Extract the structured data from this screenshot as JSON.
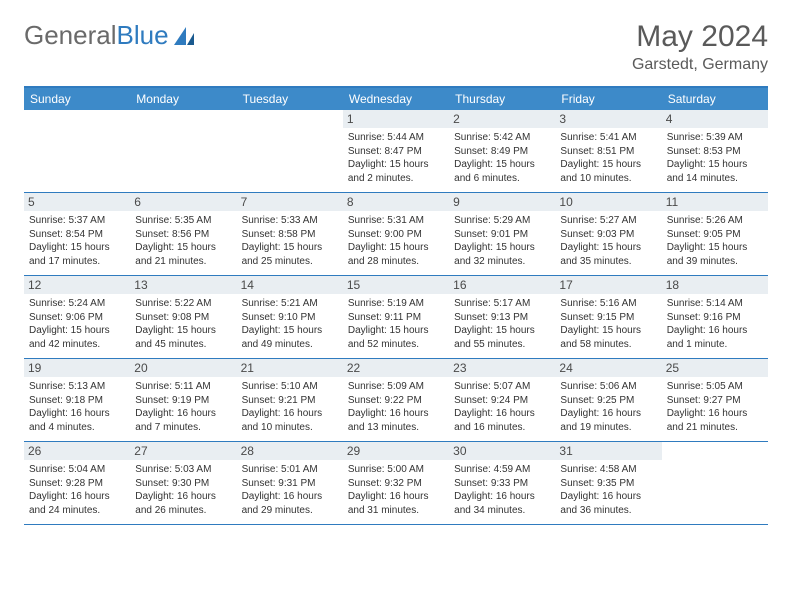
{
  "logo": {
    "text1": "General",
    "text2": "Blue"
  },
  "title": "May 2024",
  "location": "Garstedt, Germany",
  "colors": {
    "header_bg": "#3d8ac9",
    "border": "#2f7bbf",
    "daynum_bg": "#e9eef2",
    "text_gray": "#5a5a5a"
  },
  "day_headers": [
    "Sunday",
    "Monday",
    "Tuesday",
    "Wednesday",
    "Thursday",
    "Friday",
    "Saturday"
  ],
  "weeks": [
    [
      {
        "empty": true
      },
      {
        "empty": true
      },
      {
        "empty": true
      },
      {
        "num": "1",
        "sunrise": "Sunrise: 5:44 AM",
        "sunset": "Sunset: 8:47 PM",
        "daylight": "Daylight: 15 hours and 2 minutes."
      },
      {
        "num": "2",
        "sunrise": "Sunrise: 5:42 AM",
        "sunset": "Sunset: 8:49 PM",
        "daylight": "Daylight: 15 hours and 6 minutes."
      },
      {
        "num": "3",
        "sunrise": "Sunrise: 5:41 AM",
        "sunset": "Sunset: 8:51 PM",
        "daylight": "Daylight: 15 hours and 10 minutes."
      },
      {
        "num": "4",
        "sunrise": "Sunrise: 5:39 AM",
        "sunset": "Sunset: 8:53 PM",
        "daylight": "Daylight: 15 hours and 14 minutes."
      }
    ],
    [
      {
        "num": "5",
        "sunrise": "Sunrise: 5:37 AM",
        "sunset": "Sunset: 8:54 PM",
        "daylight": "Daylight: 15 hours and 17 minutes."
      },
      {
        "num": "6",
        "sunrise": "Sunrise: 5:35 AM",
        "sunset": "Sunset: 8:56 PM",
        "daylight": "Daylight: 15 hours and 21 minutes."
      },
      {
        "num": "7",
        "sunrise": "Sunrise: 5:33 AM",
        "sunset": "Sunset: 8:58 PM",
        "daylight": "Daylight: 15 hours and 25 minutes."
      },
      {
        "num": "8",
        "sunrise": "Sunrise: 5:31 AM",
        "sunset": "Sunset: 9:00 PM",
        "daylight": "Daylight: 15 hours and 28 minutes."
      },
      {
        "num": "9",
        "sunrise": "Sunrise: 5:29 AM",
        "sunset": "Sunset: 9:01 PM",
        "daylight": "Daylight: 15 hours and 32 minutes."
      },
      {
        "num": "10",
        "sunrise": "Sunrise: 5:27 AM",
        "sunset": "Sunset: 9:03 PM",
        "daylight": "Daylight: 15 hours and 35 minutes."
      },
      {
        "num": "11",
        "sunrise": "Sunrise: 5:26 AM",
        "sunset": "Sunset: 9:05 PM",
        "daylight": "Daylight: 15 hours and 39 minutes."
      }
    ],
    [
      {
        "num": "12",
        "sunrise": "Sunrise: 5:24 AM",
        "sunset": "Sunset: 9:06 PM",
        "daylight": "Daylight: 15 hours and 42 minutes."
      },
      {
        "num": "13",
        "sunrise": "Sunrise: 5:22 AM",
        "sunset": "Sunset: 9:08 PM",
        "daylight": "Daylight: 15 hours and 45 minutes."
      },
      {
        "num": "14",
        "sunrise": "Sunrise: 5:21 AM",
        "sunset": "Sunset: 9:10 PM",
        "daylight": "Daylight: 15 hours and 49 minutes."
      },
      {
        "num": "15",
        "sunrise": "Sunrise: 5:19 AM",
        "sunset": "Sunset: 9:11 PM",
        "daylight": "Daylight: 15 hours and 52 minutes."
      },
      {
        "num": "16",
        "sunrise": "Sunrise: 5:17 AM",
        "sunset": "Sunset: 9:13 PM",
        "daylight": "Daylight: 15 hours and 55 minutes."
      },
      {
        "num": "17",
        "sunrise": "Sunrise: 5:16 AM",
        "sunset": "Sunset: 9:15 PM",
        "daylight": "Daylight: 15 hours and 58 minutes."
      },
      {
        "num": "18",
        "sunrise": "Sunrise: 5:14 AM",
        "sunset": "Sunset: 9:16 PM",
        "daylight": "Daylight: 16 hours and 1 minute."
      }
    ],
    [
      {
        "num": "19",
        "sunrise": "Sunrise: 5:13 AM",
        "sunset": "Sunset: 9:18 PM",
        "daylight": "Daylight: 16 hours and 4 minutes."
      },
      {
        "num": "20",
        "sunrise": "Sunrise: 5:11 AM",
        "sunset": "Sunset: 9:19 PM",
        "daylight": "Daylight: 16 hours and 7 minutes."
      },
      {
        "num": "21",
        "sunrise": "Sunrise: 5:10 AM",
        "sunset": "Sunset: 9:21 PM",
        "daylight": "Daylight: 16 hours and 10 minutes."
      },
      {
        "num": "22",
        "sunrise": "Sunrise: 5:09 AM",
        "sunset": "Sunset: 9:22 PM",
        "daylight": "Daylight: 16 hours and 13 minutes."
      },
      {
        "num": "23",
        "sunrise": "Sunrise: 5:07 AM",
        "sunset": "Sunset: 9:24 PM",
        "daylight": "Daylight: 16 hours and 16 minutes."
      },
      {
        "num": "24",
        "sunrise": "Sunrise: 5:06 AM",
        "sunset": "Sunset: 9:25 PM",
        "daylight": "Daylight: 16 hours and 19 minutes."
      },
      {
        "num": "25",
        "sunrise": "Sunrise: 5:05 AM",
        "sunset": "Sunset: 9:27 PM",
        "daylight": "Daylight: 16 hours and 21 minutes."
      }
    ],
    [
      {
        "num": "26",
        "sunrise": "Sunrise: 5:04 AM",
        "sunset": "Sunset: 9:28 PM",
        "daylight": "Daylight: 16 hours and 24 minutes."
      },
      {
        "num": "27",
        "sunrise": "Sunrise: 5:03 AM",
        "sunset": "Sunset: 9:30 PM",
        "daylight": "Daylight: 16 hours and 26 minutes."
      },
      {
        "num": "28",
        "sunrise": "Sunrise: 5:01 AM",
        "sunset": "Sunset: 9:31 PM",
        "daylight": "Daylight: 16 hours and 29 minutes."
      },
      {
        "num": "29",
        "sunrise": "Sunrise: 5:00 AM",
        "sunset": "Sunset: 9:32 PM",
        "daylight": "Daylight: 16 hours and 31 minutes."
      },
      {
        "num": "30",
        "sunrise": "Sunrise: 4:59 AM",
        "sunset": "Sunset: 9:33 PM",
        "daylight": "Daylight: 16 hours and 34 minutes."
      },
      {
        "num": "31",
        "sunrise": "Sunrise: 4:58 AM",
        "sunset": "Sunset: 9:35 PM",
        "daylight": "Daylight: 16 hours and 36 minutes."
      },
      {
        "empty": true
      }
    ]
  ]
}
